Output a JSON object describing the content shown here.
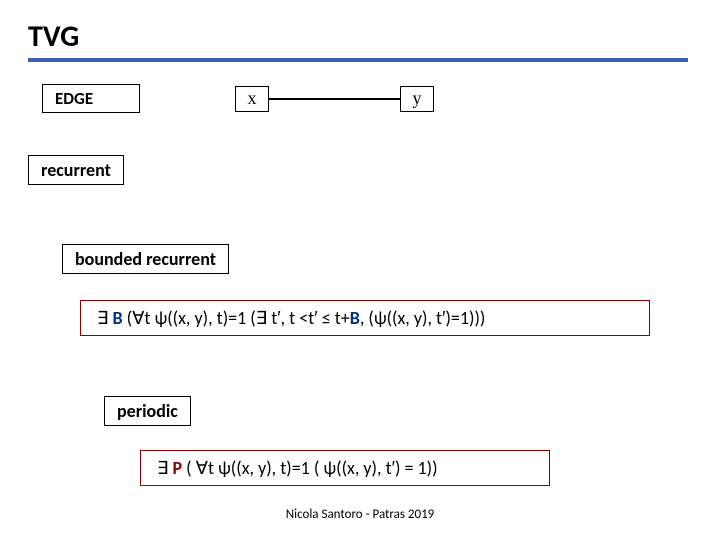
{
  "title": "TVG",
  "hr_color": "#3a5fbf",
  "labels": {
    "edge": "EDGE",
    "recurrent": "recurrent",
    "bounded": "bounded recurrent",
    "periodic": "periodic"
  },
  "nodes": {
    "x": "x",
    "y": "y"
  },
  "formulas": {
    "bounded": {
      "prefix": "∃ ",
      "B": "B",
      "mid": "  (∀t  ψ((x, y), t)=1  (∃ t′,  t <t′ ≤ t+",
      "B2": "B",
      "suffix": ",   (ψ((x, y), t′)=1)))"
    },
    "periodic": {
      "prefix": "∃ ",
      "P": "P",
      "rest": " ( ∀t   ψ((x, y), t)=1 ( ψ((x, y), t′) = 1))"
    }
  },
  "footer": "Nicola Santoro - Patras 2019"
}
